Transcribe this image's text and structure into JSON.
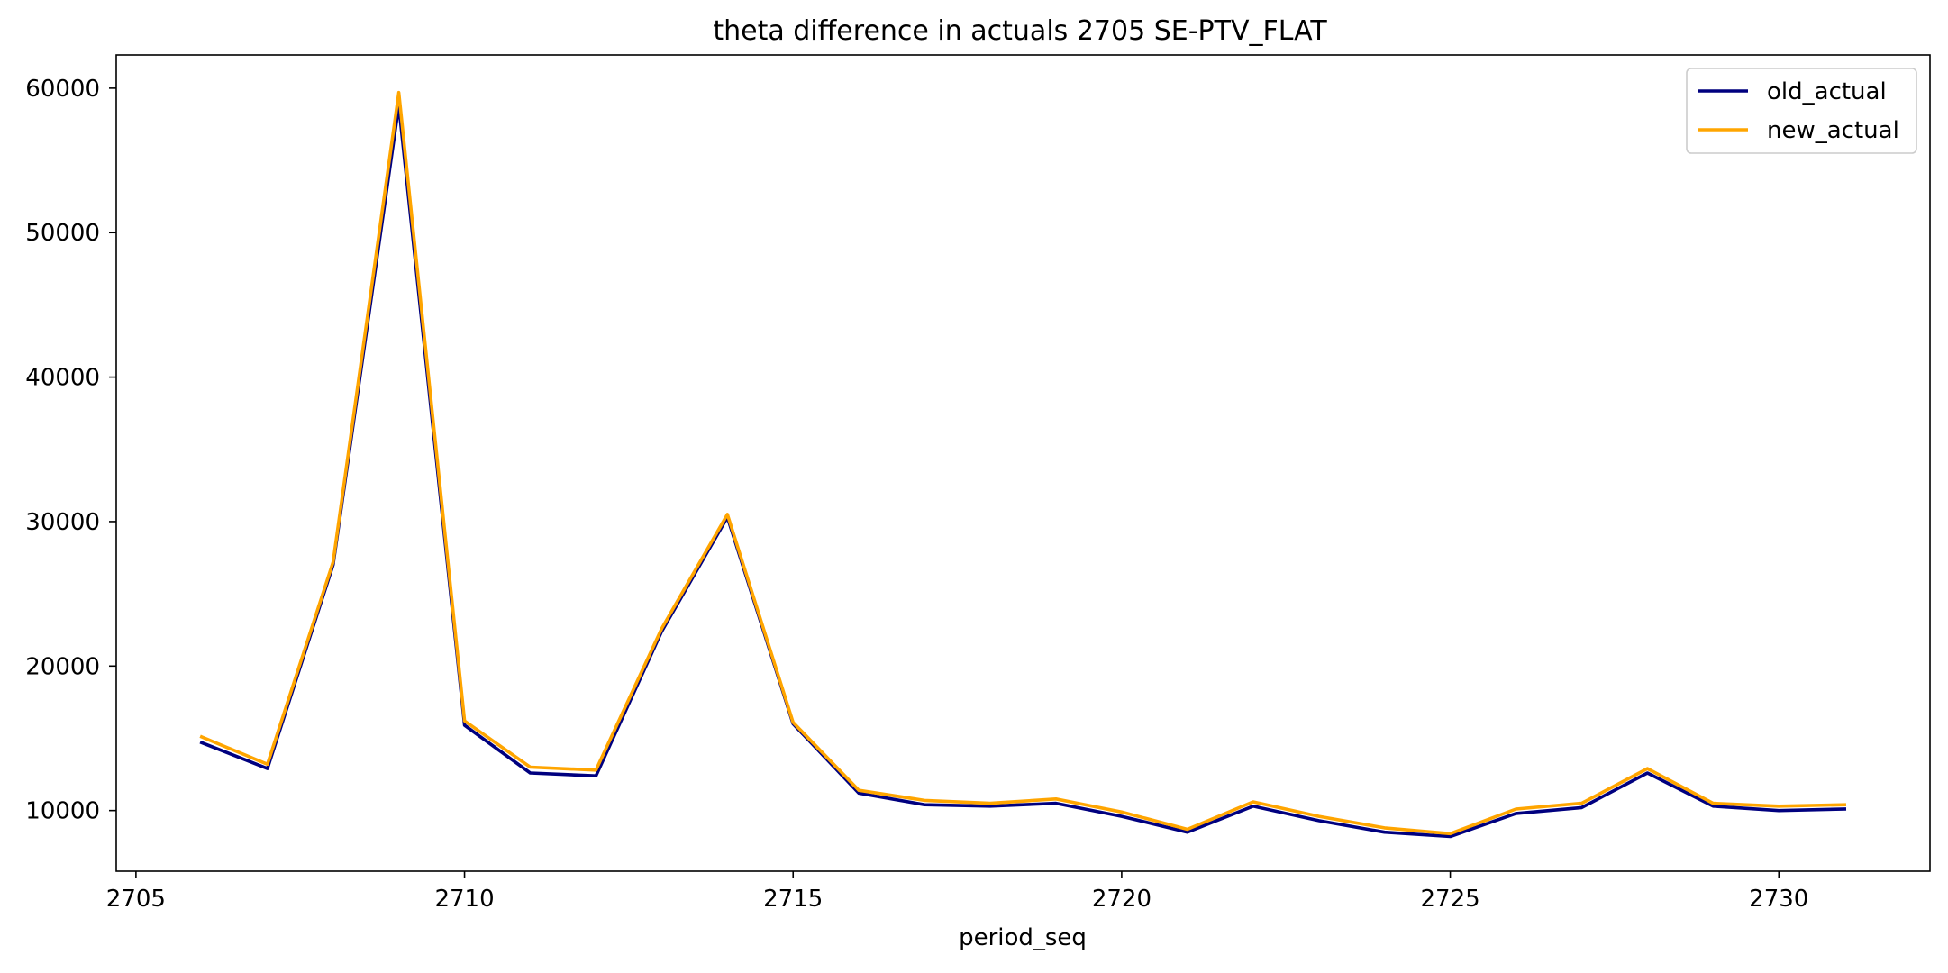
{
  "chart_data": {
    "type": "line",
    "title": "theta difference in actuals 2705 SE-PTV_FLAT",
    "xlabel": "period_seq",
    "ylabel": "",
    "xlim": [
      2704.7,
      2732.3
    ],
    "ylim": [
      5800,
      62300
    ],
    "xticks": [
      2705,
      2710,
      2715,
      2720,
      2725,
      2730
    ],
    "yticks": [
      10000,
      20000,
      30000,
      40000,
      50000,
      60000
    ],
    "grid": false,
    "legend_position": "top-right",
    "x": [
      2706,
      2707,
      2708,
      2709,
      2710,
      2711,
      2712,
      2713,
      2714,
      2715,
      2716,
      2717,
      2718,
      2719,
      2720,
      2721,
      2722,
      2723,
      2724,
      2725,
      2726,
      2727,
      2728,
      2729,
      2730,
      2731
    ],
    "series": [
      {
        "name": "old_actual",
        "color": "#00007f",
        "values": [
          14700,
          12900,
          27000,
          58800,
          15900,
          12600,
          12400,
          22400,
          30300,
          16000,
          11200,
          10400,
          10300,
          10500,
          9600,
          8500,
          10300,
          9300,
          8500,
          8200,
          9800,
          10200,
          12600,
          10300,
          10000,
          10100
        ]
      },
      {
        "name": "new_actual",
        "color": "#ffa500",
        "values": [
          15100,
          13200,
          27200,
          59700,
          16200,
          13000,
          12800,
          22600,
          30500,
          16100,
          11400,
          10700,
          10500,
          10800,
          9900,
          8700,
          10600,
          9600,
          8800,
          8400,
          10100,
          10500,
          12900,
          10500,
          10300,
          10400
        ]
      }
    ]
  }
}
